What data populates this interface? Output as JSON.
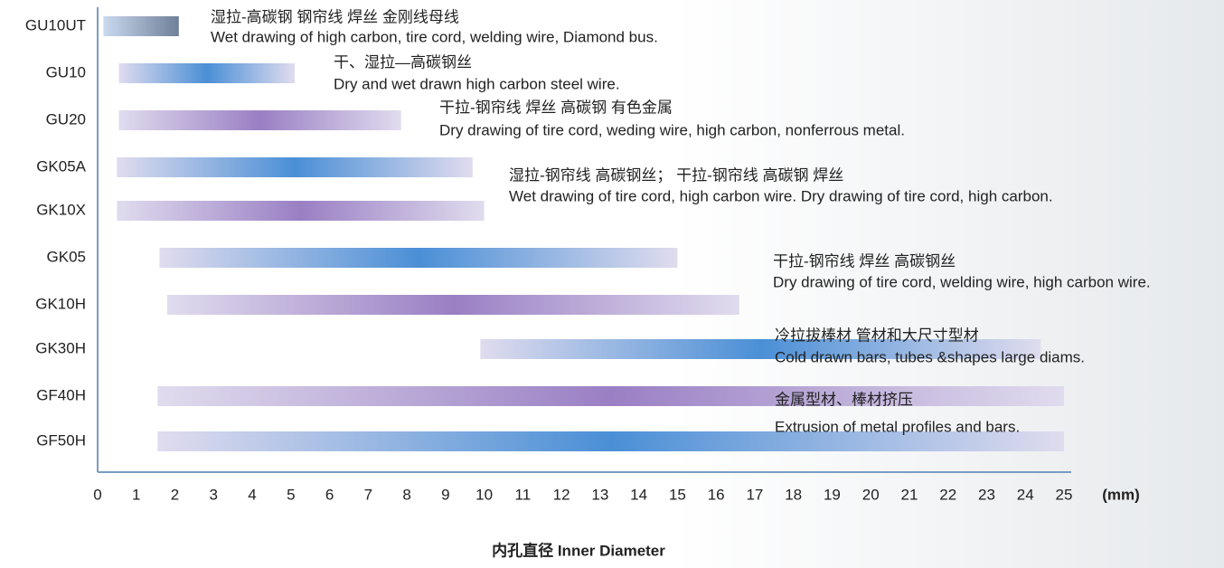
{
  "chart_data": {
    "type": "range-bar",
    "categories": [
      "GU10UT",
      "GU10",
      "GU20",
      "GK05A",
      "GK10X",
      "GK05",
      "GK10H",
      "GK30H",
      "GF40H",
      "GF50H"
    ],
    "ranges": [
      [
        0.15,
        2.1
      ],
      [
        0.55,
        5.1
      ],
      [
        0.55,
        7.85
      ],
      [
        0.5,
        9.7
      ],
      [
        0.5,
        10.0
      ],
      [
        1.6,
        15.0
      ],
      [
        1.8,
        16.6
      ],
      [
        9.9,
        24.4
      ],
      [
        1.55,
        25
      ],
      [
        1.55,
        25
      ]
    ],
    "colors": [
      "#6f7f98",
      "#4a8fd6",
      "#9a7fc4",
      "#4a8fd6",
      "#9a7fc4",
      "#4a8fd6",
      "#9a7fc4",
      "#4a8fd6",
      "#9a7fc4",
      "#4a8fd6"
    ],
    "xlim": [
      0,
      25
    ],
    "xticks": [
      0,
      1,
      2,
      3,
      4,
      5,
      6,
      7,
      8,
      9,
      10,
      11,
      12,
      13,
      14,
      15,
      16,
      17,
      18,
      19,
      20,
      21,
      22,
      23,
      24,
      25
    ],
    "x_unit": "(mm)",
    "x_label": "内孔直径  Inner Diameter",
    "annotations": [
      {
        "zh": "湿拉-高碳钢   钢帘线  焊丝  金刚线母线",
        "en": "Wet drawing of high carbon, tire cord, welding wire, Diamond bus."
      },
      {
        "zh": "干、湿拉—高碳钢丝",
        "en": "Dry and wet drawn high carbon steel wire."
      },
      {
        "zh": "干拉-钢帘线  焊丝   高碳钢 有色金属",
        "en": "Dry drawing of tire cord, weding wire, high carbon, nonferrous metal."
      },
      {
        "zh": "湿拉-钢帘线  高碳钢丝；  干拉-钢帘线 高碳钢 焊丝",
        "en": "Wet drawing of tire cord, high carbon wire. Dry drawing of tire cord, high carbon."
      },
      {
        "zh": "干拉-钢帘线 焊丝 高碳钢丝",
        "en": "Dry drawing of tire cord, welding wire, high carbon wire."
      },
      {
        "zh": "冷拉拔棒材  管材和大尺寸型材",
        "en": "Cold drawn bars, tubes &shapes large diams."
      },
      {
        "zh": "金属型材、棒材挤压",
        "en": "Extrusion of metal profiles and bars."
      }
    ]
  }
}
